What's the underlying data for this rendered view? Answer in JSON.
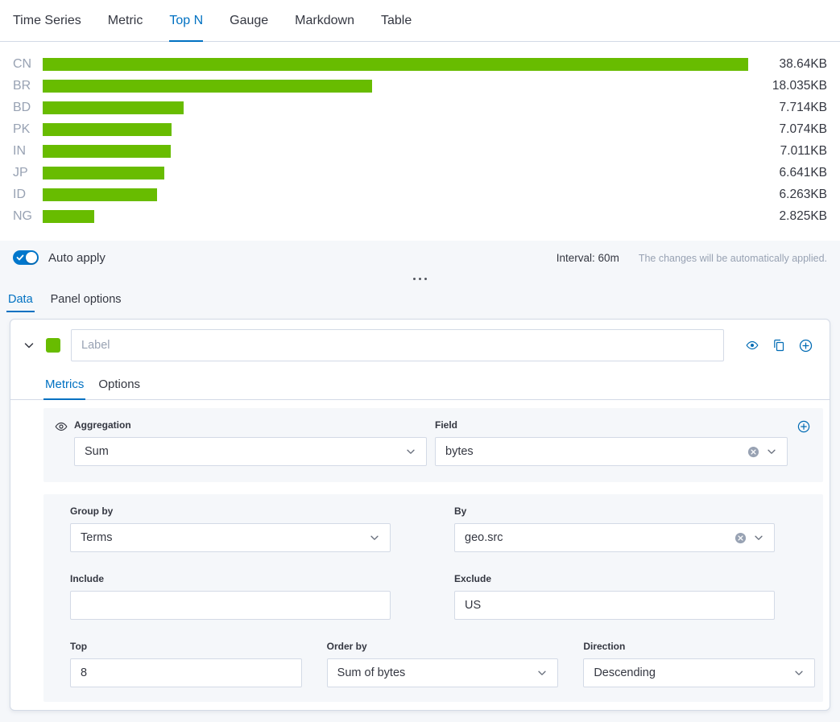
{
  "colors": {
    "accent": "#0071c2",
    "icon_blue": "#006bb4",
    "bar_green": "#68bc00"
  },
  "top_tabs": [
    "Time Series",
    "Metric",
    "Top N",
    "Gauge",
    "Markdown",
    "Table"
  ],
  "top_tabs_active": "Top N",
  "chart_data": {
    "type": "bar",
    "orientation": "horizontal",
    "categories": [
      "CN",
      "BR",
      "BD",
      "PK",
      "IN",
      "JP",
      "ID",
      "NG"
    ],
    "values": [
      38.64,
      18.035,
      7.714,
      7.074,
      7.011,
      6.641,
      6.263,
      2.825
    ],
    "value_labels": [
      "38.64KB",
      "18.035KB",
      "7.714KB",
      "7.074KB",
      "7.011KB",
      "6.641KB",
      "6.263KB",
      "2.825KB"
    ],
    "unit": "KB",
    "bar_color": "#68bc00",
    "title": "",
    "xlabel": "",
    "ylabel": "",
    "xlim": [
      0,
      38.64
    ],
    "grid": false,
    "legend": false
  },
  "toolbar": {
    "auto_apply_label": "Auto apply",
    "auto_apply_on": true,
    "interval_label": "Interval: 60m",
    "hint": "The changes will be automatically applied."
  },
  "editor_tabs": {
    "data": "Data",
    "panel_options": "Panel options"
  },
  "series": {
    "label_placeholder": "Label",
    "swatch_color": "#68bc00",
    "tabs": {
      "metrics": "Metrics",
      "options": "Options"
    },
    "aggregation": {
      "label": "Aggregation",
      "value": "Sum"
    },
    "field": {
      "label": "Field",
      "value": "bytes"
    },
    "group_by": {
      "label": "Group by",
      "value": "Terms"
    },
    "by": {
      "label": "By",
      "value": "geo.src"
    },
    "include": {
      "label": "Include",
      "value": ""
    },
    "exclude": {
      "label": "Exclude",
      "value": "US"
    },
    "top": {
      "label": "Top",
      "value": "8"
    },
    "order_by": {
      "label": "Order by",
      "value": "Sum of bytes"
    },
    "direction": {
      "label": "Direction",
      "value": "Descending"
    }
  },
  "icons": {
    "header": [
      "eye-icon",
      "copy-icon",
      "plus-circle-icon"
    ],
    "combo_clear": "x-circle-icon",
    "select_caret": "chevron-down-icon"
  }
}
